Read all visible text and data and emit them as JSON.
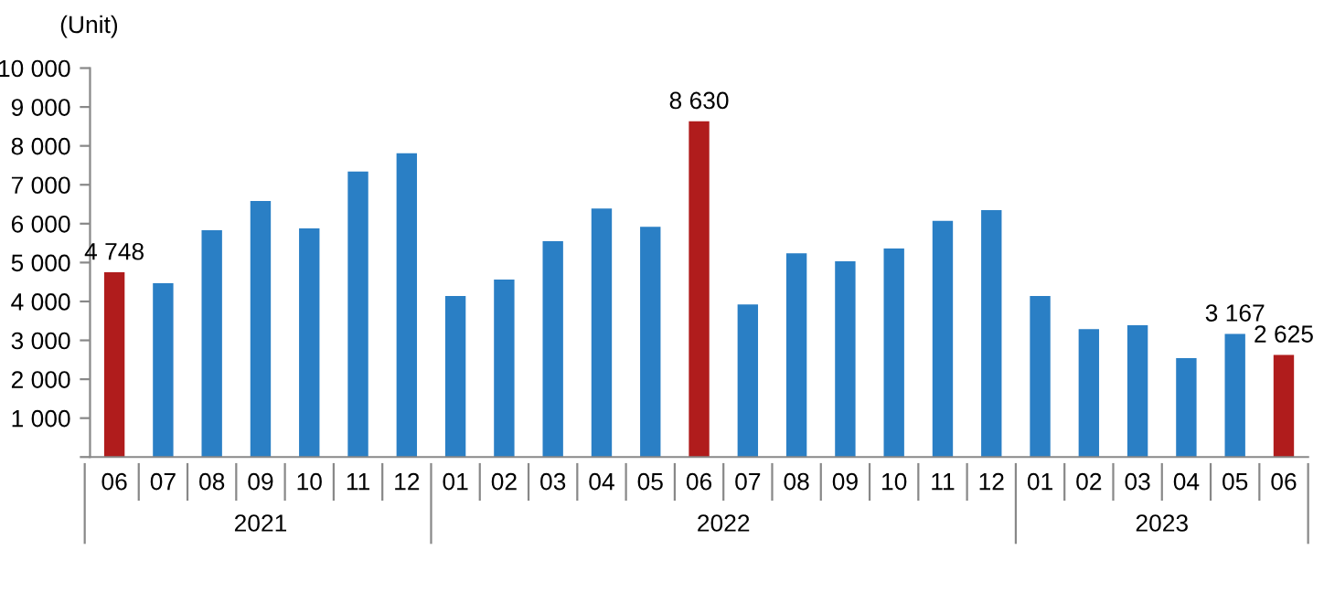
{
  "chart_data": {
    "type": "bar",
    "ylabel": "(Unit)",
    "categories": [
      "06",
      "07",
      "08",
      "09",
      "10",
      "11",
      "12",
      "01",
      "02",
      "03",
      "04",
      "05",
      "06",
      "07",
      "08",
      "09",
      "10",
      "11",
      "12",
      "01",
      "02",
      "03",
      "04",
      "05",
      "06"
    ],
    "values": [
      4748,
      4470,
      5830,
      6580,
      5880,
      7340,
      7810,
      4140,
      4560,
      5550,
      6390,
      5920,
      8630,
      3920,
      5240,
      5030,
      5360,
      6070,
      6350,
      4140,
      3290,
      3390,
      2540,
      3167,
      2625
    ],
    "colors": [
      "#b01c1c",
      "#2a7fc5",
      "#2a7fc5",
      "#2a7fc5",
      "#2a7fc5",
      "#2a7fc5",
      "#2a7fc5",
      "#2a7fc5",
      "#2a7fc5",
      "#2a7fc5",
      "#2a7fc5",
      "#2a7fc5",
      "#b01c1c",
      "#2a7fc5",
      "#2a7fc5",
      "#2a7fc5",
      "#2a7fc5",
      "#2a7fc5",
      "#2a7fc5",
      "#2a7fc5",
      "#2a7fc5",
      "#2a7fc5",
      "#2a7fc5",
      "#2a7fc5",
      "#b01c1c"
    ],
    "value_labels": [
      "4 748",
      null,
      null,
      null,
      null,
      null,
      null,
      null,
      null,
      null,
      null,
      null,
      "8 630",
      null,
      null,
      null,
      null,
      null,
      null,
      null,
      null,
      null,
      null,
      "3 167",
      "2 625"
    ],
    "ylim": [
      0,
      10000
    ],
    "yticks": [
      {
        "value": 0,
        "label": null
      },
      {
        "value": 1000,
        "label": "1 000"
      },
      {
        "value": 2000,
        "label": "2 000"
      },
      {
        "value": 3000,
        "label": "3 000"
      },
      {
        "value": 4000,
        "label": "4 000"
      },
      {
        "value": 5000,
        "label": "5 000"
      },
      {
        "value": 6000,
        "label": "6 000"
      },
      {
        "value": 7000,
        "label": "7 000"
      },
      {
        "value": 8000,
        "label": "8 000"
      },
      {
        "value": 9000,
        "label": "9 000"
      },
      {
        "value": 10000,
        "label": "10 000"
      }
    ],
    "annotations": [
      "2021",
      "2022",
      "2023"
    ],
    "grid": false,
    "legend": false
  }
}
